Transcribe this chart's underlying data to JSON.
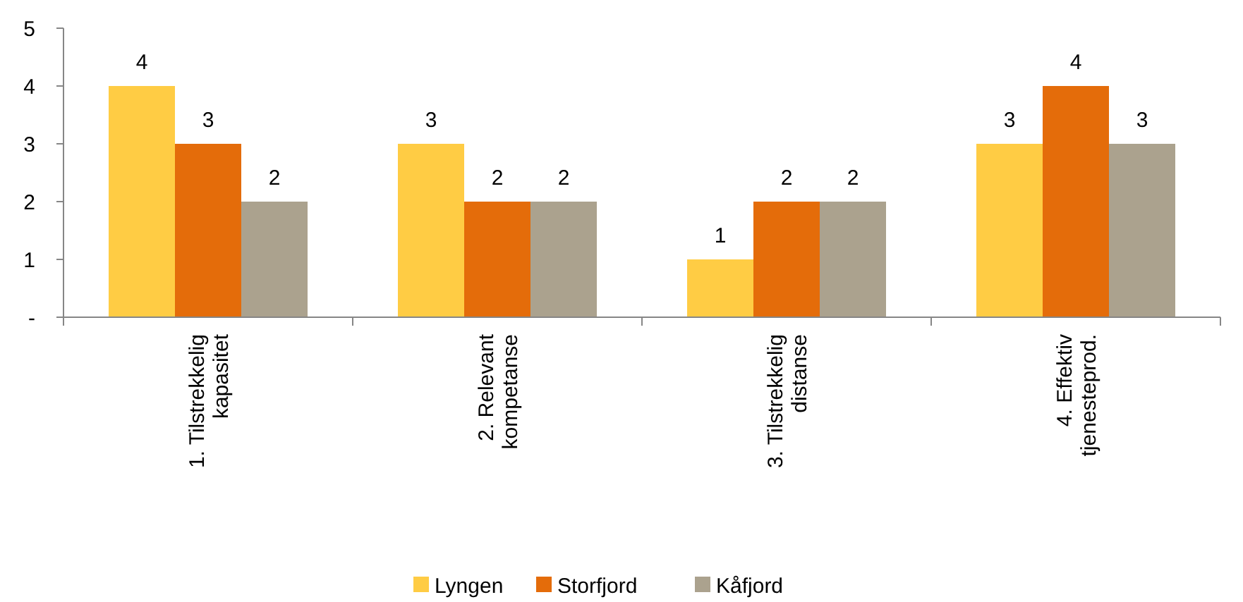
{
  "chart_data": {
    "type": "bar",
    "categories": [
      "1. Tilstrekkelig kapasitet",
      "2. Relevant kompetanse",
      "3. Tilstrekkelig distanse",
      "4. Effektiv tjenesteprod."
    ],
    "series": [
      {
        "name": "Lyngen",
        "color": "#ffcc44",
        "values": [
          4,
          3,
          1,
          3
        ]
      },
      {
        "name": "Storfjord",
        "color": "#e46c0a",
        "values": [
          3,
          2,
          2,
          4
        ]
      },
      {
        "name": "Kåfjord",
        "color": "#aba28e",
        "values": [
          2,
          2,
          2,
          3
        ]
      }
    ],
    "ylim": [
      0,
      5
    ],
    "yticks": [
      {
        "value": 0,
        "label": "-"
      },
      1,
      2,
      3,
      4,
      5
    ],
    "data_labels": true,
    "legend": "bottom",
    "grid": false
  }
}
